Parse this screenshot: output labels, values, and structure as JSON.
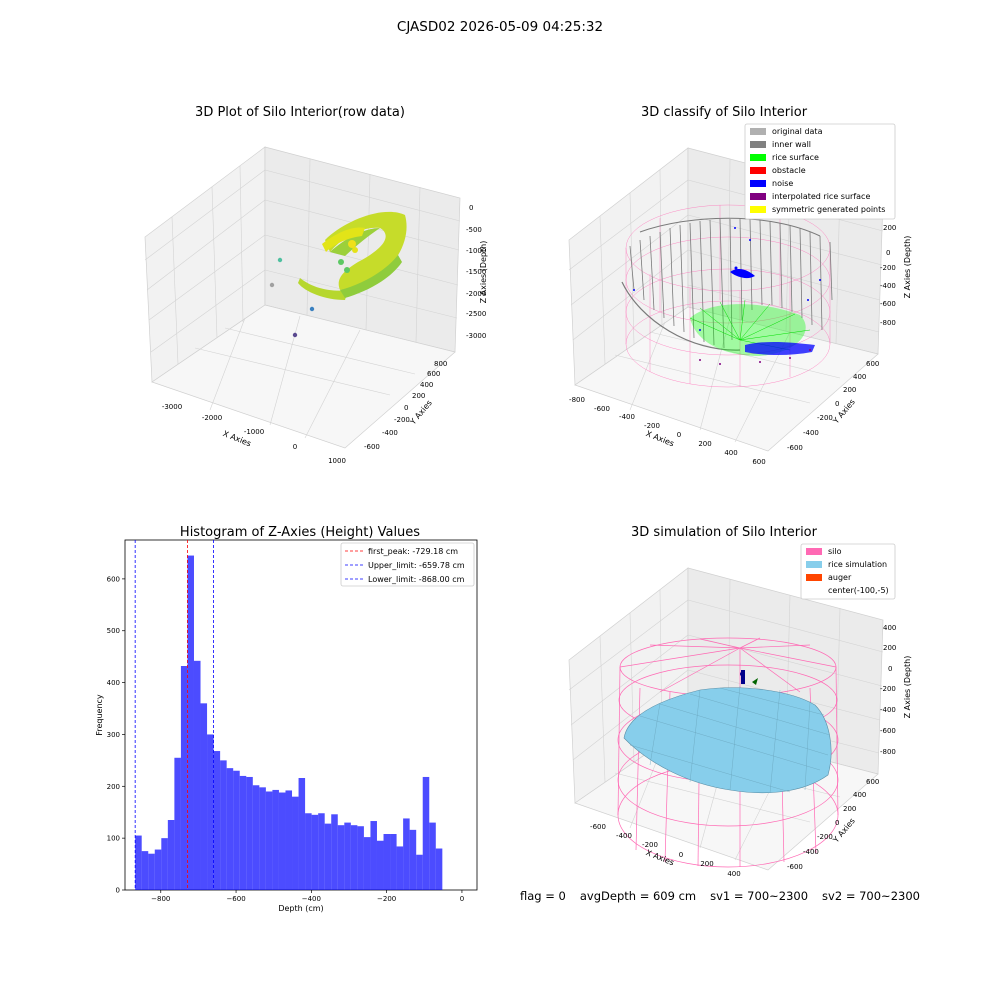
{
  "suptitle": "CJASD02 2026-05-09 04:25:32",
  "footer": {
    "flag": "flag = 0",
    "avg_depth": "avgDepth = 609 cm",
    "sv1": "sv1 = 700~2300",
    "sv2": "sv2 = 700~2300"
  },
  "colors": {
    "silo": "#ff69b4",
    "rice_simulation": "#87ceeb",
    "auger": "#ff4500",
    "histogram_bar": "#0000ff",
    "first_peak_line": "#ff0000",
    "limit_lines": "#0000ff"
  },
  "chart_data": [
    {
      "type": "scatter3d",
      "title": "3D Plot of Silo Interior(row data)",
      "xlabel": "X Axies",
      "ylabel": "Y Axies",
      "zlabel": "Z Axies (Depth)",
      "x_ticks": [
        "-3000",
        "-2000",
        "-1000",
        "0",
        "1000"
      ],
      "y_ticks": [
        "-600",
        "-400",
        "-200",
        "0",
        "200",
        "400",
        "600",
        "800"
      ],
      "z_ticks": [
        "0",
        "-500",
        "-1000",
        "-1500",
        "-2000",
        "-2500",
        "-3000"
      ],
      "colormap": "viridis"
    },
    {
      "type": "scatter3d",
      "title": "3D classify of Silo Interior",
      "xlabel": "X Axies",
      "ylabel": "Y Axies",
      "zlabel": "Z Axies (Depth)",
      "x_ticks": [
        "-800",
        "-600",
        "-400",
        "-200",
        "0",
        "200",
        "400",
        "600"
      ],
      "y_ticks": [
        "-600",
        "-400",
        "-200",
        "0",
        "200",
        "400",
        "600"
      ],
      "z_ticks": [
        "200",
        "0",
        "-200",
        "-400",
        "-600",
        "-800"
      ],
      "legend_position": "top-right",
      "legend": [
        {
          "label": "original data",
          "color": "#b0b0b0"
        },
        {
          "label": "inner wall",
          "color": "#808080"
        },
        {
          "label": "rice surface",
          "color": "#00ff00"
        },
        {
          "label": "obstacle",
          "color": "#ff0000"
        },
        {
          "label": "noise",
          "color": "#0000ff"
        },
        {
          "label": "interpolated rice surface",
          "color": "#800080"
        },
        {
          "label": "symmetric generated points",
          "color": "#ffff00"
        }
      ]
    },
    {
      "type": "bar",
      "title": "Histogram of Z-Axies (Height) Values",
      "xlabel": "Depth (cm)",
      "ylabel": "Frequency",
      "xlim": [
        -895,
        40
      ],
      "ylim": [
        0,
        675
      ],
      "x_ticks": [
        -800,
        -600,
        -400,
        -200,
        0
      ],
      "y_ticks": [
        0,
        100,
        200,
        300,
        400,
        500,
        600
      ],
      "bin_start": -868,
      "bin_width": 17.36,
      "values": [
        105,
        75,
        70,
        78,
        100,
        135,
        255,
        432,
        645,
        442,
        360,
        300,
        268,
        250,
        235,
        230,
        220,
        218,
        202,
        198,
        190,
        193,
        188,
        192,
        180,
        216,
        148,
        145,
        148,
        128,
        146,
        125,
        130,
        125,
        123,
        102,
        133,
        95,
        108,
        108,
        84,
        138,
        116,
        68,
        218,
        130,
        80
      ],
      "legend_position": "top-right",
      "vlines": [
        {
          "label": "first_peak: -729.18 cm",
          "x": -729.18,
          "color": "#ff0000"
        },
        {
          "label": "Upper_limit: -659.78 cm",
          "x": -659.78,
          "color": "#0000ff"
        },
        {
          "label": "Lower_limit: -868.00 cm",
          "x": -868.0,
          "color": "#0000ff"
        }
      ]
    },
    {
      "type": "surface3d",
      "title": "3D simulation of Silo Interior",
      "xlabel": "X Axies",
      "ylabel": "Y Axies",
      "zlabel": "Z Axies (Depth)",
      "x_ticks": [
        "-600",
        "-400",
        "-200",
        "0",
        "200",
        "400"
      ],
      "y_ticks": [
        "-600",
        "-400",
        "-200",
        "0",
        "200",
        "400",
        "600"
      ],
      "z_ticks": [
        "400",
        "200",
        "0",
        "-200",
        "-400",
        "-600",
        "-800"
      ],
      "legend_position": "top-right",
      "legend": [
        {
          "label": "silo",
          "color": "#ff69b4"
        },
        {
          "label": "rice simulation",
          "color": "#87ceeb"
        },
        {
          "label": "auger",
          "color": "#ff4500"
        },
        {
          "label": "center(-100,-5)",
          "color": ""
        }
      ]
    }
  ]
}
